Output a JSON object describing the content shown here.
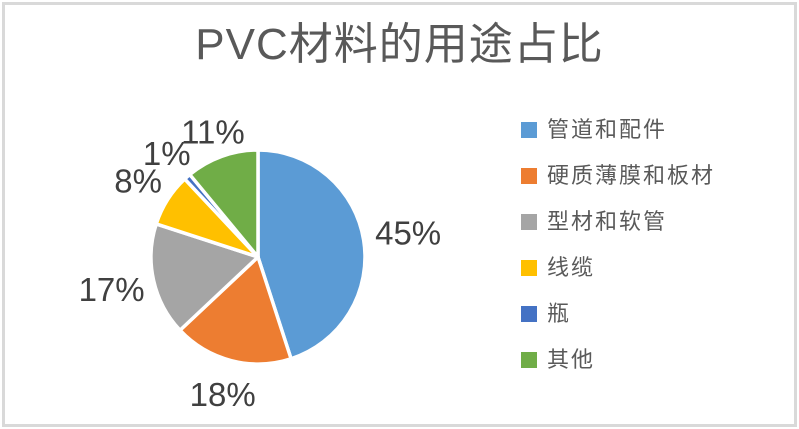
{
  "window": {
    "background": "#FFFFFF",
    "border_color": "#D9D9D9"
  },
  "chart_data": {
    "type": "pie",
    "title": "PVC材料的用途占比",
    "categories": [
      "管道和配件",
      "硬质薄膜和板材",
      "型材和软管",
      "线缆",
      "瓶",
      "其他"
    ],
    "values": [
      45,
      18,
      17,
      8,
      1,
      11
    ],
    "labels": [
      "45%",
      "18%",
      "17%",
      "8%",
      "1%",
      "11%"
    ],
    "colors": [
      "#5B9BD5",
      "#ED7D31",
      "#A5A5A5",
      "#FFC000",
      "#4472C4",
      "#70AD47"
    ],
    "legend_position": "right",
    "start_angle_deg": 0,
    "direction": "clockwise",
    "slice_border_color": "#FFFFFF",
    "title_color": "#595959",
    "label_color": "#404040",
    "legend_text_color": "#595959"
  }
}
